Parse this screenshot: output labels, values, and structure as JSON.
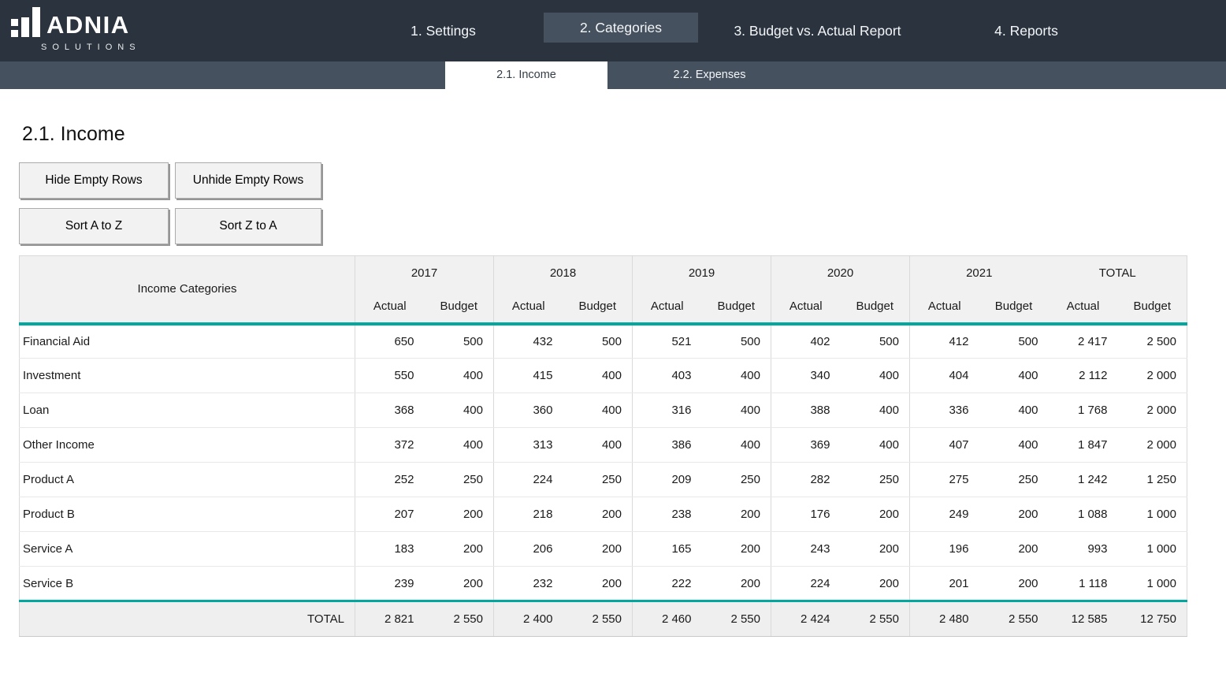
{
  "brand": {
    "name": "ADNIA",
    "tagline": "SOLUTIONS"
  },
  "nav": {
    "items": [
      {
        "label": "1. Settings",
        "active": false
      },
      {
        "label": "2. Categories",
        "active": true
      },
      {
        "label": "3. Budget vs. Actual Report",
        "active": false
      },
      {
        "label": "4. Reports",
        "active": false
      }
    ]
  },
  "subnav": {
    "items": [
      {
        "label": "2.1. Income",
        "active": true
      },
      {
        "label": "2.2. Expenses",
        "active": false
      }
    ]
  },
  "page": {
    "title": "2.1. Income"
  },
  "toolbar": {
    "hide_empty": "Hide Empty Rows",
    "unhide_empty": "Unhide Empty Rows",
    "sort_az": "Sort A to Z",
    "sort_za": "Sort Z to A"
  },
  "table": {
    "category_header": "Income Categories",
    "year_headers": [
      "2017",
      "2018",
      "2019",
      "2020",
      "2021",
      "TOTAL"
    ],
    "sub_headers": [
      "Actual",
      "Budget"
    ],
    "rows": [
      {
        "category": "Financial Aid",
        "values": [
          "650",
          "500",
          "432",
          "500",
          "521",
          "500",
          "402",
          "500",
          "412",
          "500",
          "2 417",
          "2 500"
        ]
      },
      {
        "category": "Investment",
        "values": [
          "550",
          "400",
          "415",
          "400",
          "403",
          "400",
          "340",
          "400",
          "404",
          "400",
          "2 112",
          "2 000"
        ]
      },
      {
        "category": "Loan",
        "values": [
          "368",
          "400",
          "360",
          "400",
          "316",
          "400",
          "388",
          "400",
          "336",
          "400",
          "1 768",
          "2 000"
        ]
      },
      {
        "category": "Other Income",
        "values": [
          "372",
          "400",
          "313",
          "400",
          "386",
          "400",
          "369",
          "400",
          "407",
          "400",
          "1 847",
          "2 000"
        ]
      },
      {
        "category": "Product A",
        "values": [
          "252",
          "250",
          "224",
          "250",
          "209",
          "250",
          "282",
          "250",
          "275",
          "250",
          "1 242",
          "1 250"
        ]
      },
      {
        "category": "Product B",
        "values": [
          "207",
          "200",
          "218",
          "200",
          "238",
          "200",
          "176",
          "200",
          "249",
          "200",
          "1 088",
          "1 000"
        ]
      },
      {
        "category": "Service A",
        "values": [
          "183",
          "200",
          "206",
          "200",
          "165",
          "200",
          "243",
          "200",
          "196",
          "200",
          "993",
          "1 000"
        ]
      },
      {
        "category": "Service B",
        "values": [
          "239",
          "200",
          "232",
          "200",
          "222",
          "200",
          "224",
          "200",
          "201",
          "200",
          "1 118",
          "1 000"
        ]
      }
    ],
    "total_row": {
      "label": "TOTAL",
      "values": [
        "2 821",
        "2 550",
        "2 400",
        "2 550",
        "2 460",
        "2 550",
        "2 424",
        "2 550",
        "2 480",
        "2 550",
        "12 585",
        "12 750"
      ]
    }
  },
  "colors": {
    "navbar_bg": "#2a333e",
    "slate": "#46515f",
    "accent_teal": "#00a89f",
    "header_bg": "#f1f1f1",
    "band_tint": "#f7f7f7"
  }
}
